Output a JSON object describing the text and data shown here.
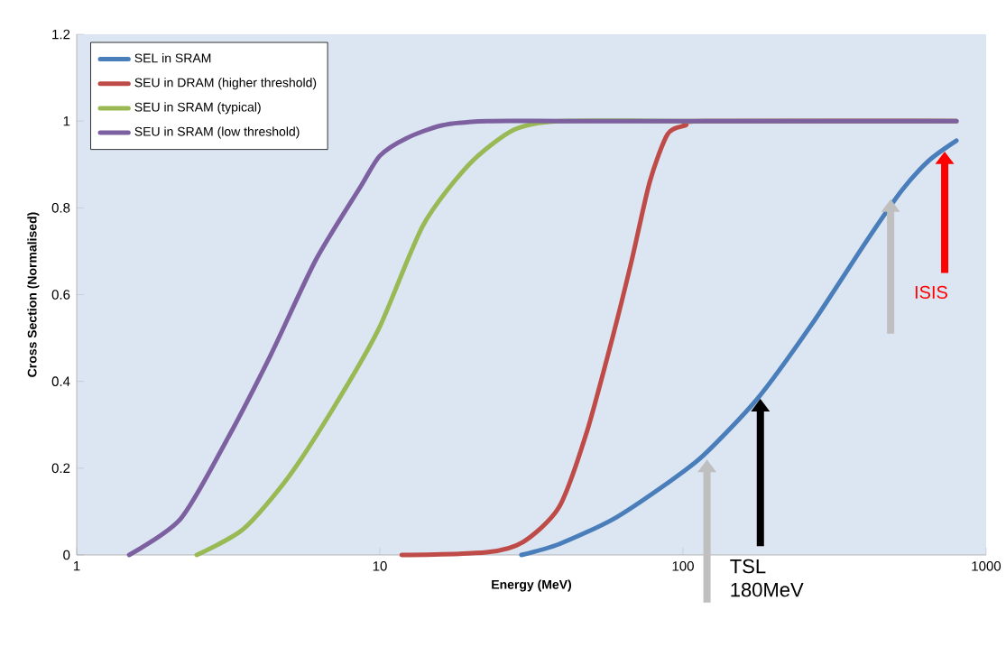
{
  "chart_data": {
    "type": "line",
    "xlabel": "Energy (MeV)",
    "ylabel": "Cross Section (Normalised)",
    "log": "x",
    "xlim": [
      1,
      1000
    ],
    "xticks": [
      1,
      10,
      100,
      1000
    ],
    "ylim": [
      0,
      1.2
    ],
    "yticks": [
      0,
      0.2,
      0.4,
      0.6,
      0.8,
      1,
      1.2
    ],
    "legend": "top left",
    "grid": false,
    "marker": "none",
    "line_style": "solid",
    "series": [
      {
        "name": "SEL in SRAM",
        "color": "#4a7ebb",
        "x": [
          29.3,
          39,
          59,
          89,
          117,
          176,
          265,
          400,
          527,
          650,
          798
        ],
        "values": [
          0,
          0.025,
          0.083,
          0.166,
          0.23,
          0.36,
          0.53,
          0.72,
          0.84,
          0.91,
          0.955
        ]
      },
      {
        "name": "SEU in DRAM (higher threshold)",
        "color": "#be4b48",
        "x": [
          11.8,
          22.5,
          29.7,
          39,
          48,
          59,
          67.8,
          77.7,
          89,
          102,
          117,
          798
        ],
        "values": [
          0,
          0.006,
          0.03,
          0.11,
          0.28,
          0.51,
          0.68,
          0.86,
          0.97,
          0.99,
          1,
          1
        ]
      },
      {
        "name": "SEU in SRAM (typical)",
        "color": "#98b954",
        "x": [
          2.49,
          3.55,
          5.0,
          7.05,
          9.9,
          13.9,
          19.7,
          27.7,
          39,
          100,
          798
        ],
        "values": [
          0,
          0.06,
          0.18,
          0.34,
          0.52,
          0.76,
          0.9,
          0.98,
          1,
          1,
          1
        ]
      },
      {
        "name": "SEU in SRAM (low threshold)",
        "color": "#7d60a0",
        "x": [
          1.49,
          2.2,
          3.1,
          4.36,
          6.15,
          8.66,
          10,
          12.2,
          16,
          22.5,
          40,
          100,
          798
        ],
        "values": [
          0,
          0.083,
          0.26,
          0.46,
          0.68,
          0.85,
          0.92,
          0.96,
          0.99,
          1,
          1,
          1,
          1
        ]
      }
    ],
    "annotations": [
      "ISIS",
      "TSL 180MeV"
    ]
  }
}
